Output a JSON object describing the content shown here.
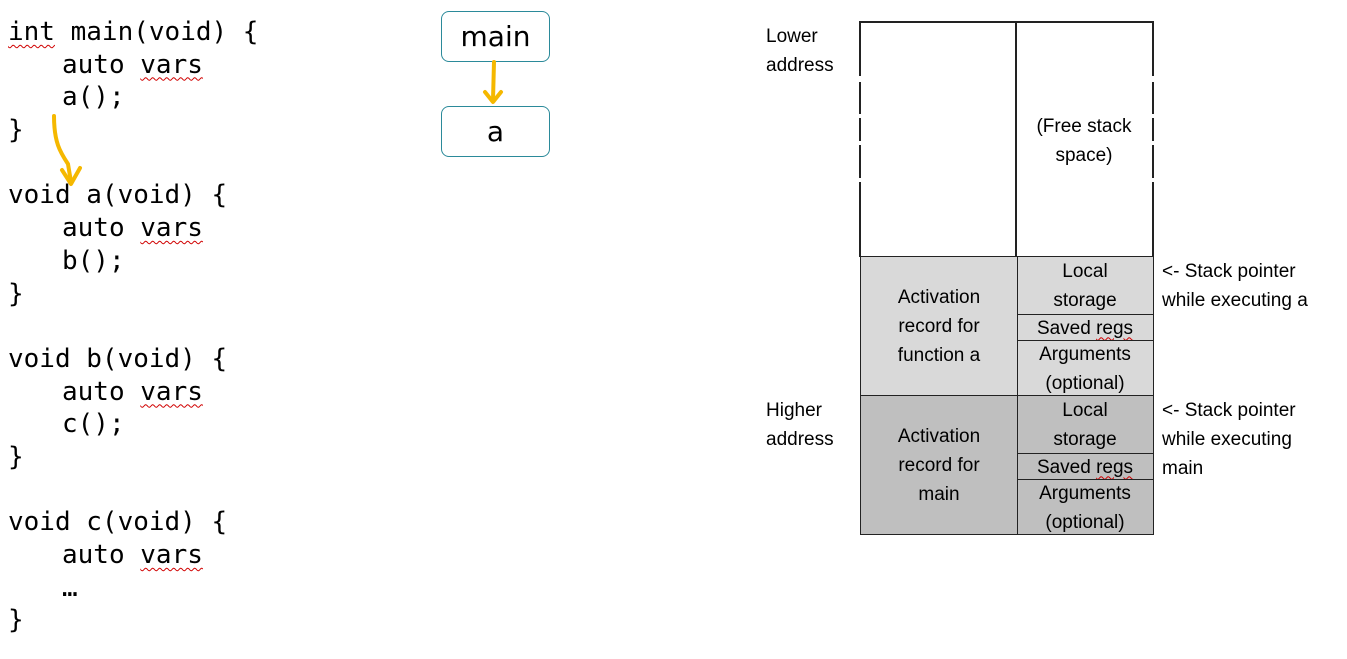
{
  "code": {
    "main_sig_kw": "int",
    "main_sig_rest": " main(void) {",
    "main_body": [
      "auto ",
      "vars",
      "a();"
    ],
    "close": "}",
    "a_sig": "void a(void) {",
    "a_body": [
      "auto ",
      "vars",
      "b();"
    ],
    "b_sig": "void b(void) {",
    "b_body": [
      "auto ",
      "vars",
      "c();"
    ],
    "c_sig": "void c(void) {",
    "c_body": [
      "auto ",
      "vars",
      "…"
    ]
  },
  "call_chain": [
    "main",
    "a"
  ],
  "stack": {
    "lower_address": [
      "Lower",
      "address"
    ],
    "higher_address": [
      "Higher",
      "address"
    ],
    "free_space": [
      "(Free stack",
      "space)"
    ],
    "record_a": {
      "label": [
        "Activation",
        "record for",
        "function a"
      ],
      "cells": [
        [
          "Local",
          "storage"
        ],
        [
          "Saved ",
          "regs"
        ],
        [
          "Arguments",
          "(optional)"
        ]
      ]
    },
    "record_main": {
      "label": [
        "Activation",
        "record for",
        "main"
      ],
      "cells": [
        [
          "Local",
          "storage"
        ],
        [
          "Saved ",
          "regs"
        ],
        [
          "Arguments",
          "(optional)"
        ]
      ]
    },
    "sp_a": [
      "<- Stack pointer",
      "while executing a"
    ],
    "sp_main": [
      "<- Stack pointer",
      "while executing",
      "main"
    ]
  },
  "colors": {
    "arrow": "#f5b800",
    "record_a_fill": "#d9d9d9",
    "record_main_fill": "#bfbfbf",
    "call_box_border": "#2b8a9a",
    "squiggle": "#d00000"
  }
}
